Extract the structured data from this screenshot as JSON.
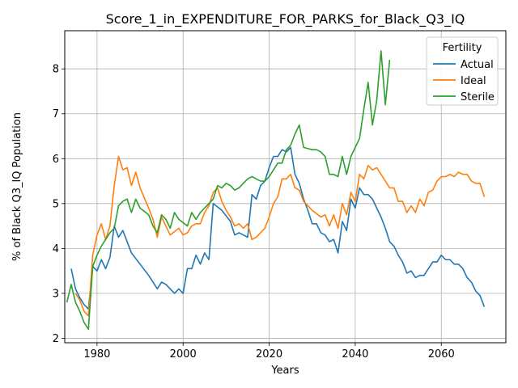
{
  "chart_data": {
    "type": "line",
    "title": "Score_1_in_EXPENDITURE_FOR_PARKS_for_Black_Q3_IQ",
    "xlabel": "Years",
    "ylabel": "% of Black Q3_IQ Population",
    "xlim": [
      1972.5,
      2075
    ],
    "ylim": [
      1.9,
      8.85
    ],
    "xticks": [
      1980,
      2000,
      2020,
      2040,
      2060
    ],
    "yticks": [
      2,
      3,
      4,
      5,
      6,
      7,
      8
    ],
    "grid": true,
    "legend": {
      "title": "Fertility",
      "placement": "top-right"
    },
    "series": [
      {
        "name": "Actual",
        "color": "#1f77b4",
        "points": [
          [
            1974,
            3.55
          ],
          [
            1975,
            3.1
          ],
          [
            1976,
            2.9
          ],
          [
            1977,
            2.75
          ],
          [
            1978,
            2.65
          ],
          [
            1979,
            3.6
          ],
          [
            1980,
            3.5
          ],
          [
            1981,
            3.75
          ],
          [
            1982,
            3.55
          ],
          [
            1983,
            3.8
          ],
          [
            1984,
            4.5
          ],
          [
            1985,
            4.25
          ],
          [
            1986,
            4.4
          ],
          [
            1987,
            4.15
          ],
          [
            1988,
            3.9
          ],
          [
            1990,
            3.65
          ],
          [
            1992,
            3.4
          ],
          [
            1994,
            3.1
          ],
          [
            1995,
            3.25
          ],
          [
            1996,
            3.2
          ],
          [
            1998,
            3.0
          ],
          [
            1999,
            3.1
          ],
          [
            2000,
            3.0
          ],
          [
            2001,
            3.55
          ],
          [
            2002,
            3.55
          ],
          [
            2003,
            3.85
          ],
          [
            2004,
            3.65
          ],
          [
            2005,
            3.9
          ],
          [
            2006,
            3.75
          ],
          [
            2007,
            5.0
          ],
          [
            2009,
            4.85
          ],
          [
            2011,
            4.6
          ],
          [
            2012,
            4.3
          ],
          [
            2013,
            4.35
          ],
          [
            2014,
            4.3
          ],
          [
            2015,
            4.25
          ],
          [
            2016,
            5.2
          ],
          [
            2017,
            5.1
          ],
          [
            2018,
            5.4
          ],
          [
            2019,
            5.5
          ],
          [
            2020,
            5.8
          ],
          [
            2021,
            6.05
          ],
          [
            2022,
            6.05
          ],
          [
            2023,
            6.2
          ],
          [
            2024,
            6.15
          ],
          [
            2025,
            6.25
          ],
          [
            2026,
            5.65
          ],
          [
            2027,
            5.45
          ],
          [
            2028,
            5.1
          ],
          [
            2029,
            4.85
          ],
          [
            2030,
            4.55
          ],
          [
            2031,
            4.55
          ],
          [
            2032,
            4.35
          ],
          [
            2033,
            4.3
          ],
          [
            2034,
            4.15
          ],
          [
            2035,
            4.2
          ],
          [
            2036,
            3.9
          ],
          [
            2037,
            4.6
          ],
          [
            2038,
            4.4
          ],
          [
            2039,
            5.1
          ],
          [
            2040,
            4.9
          ],
          [
            2041,
            5.35
          ],
          [
            2042,
            5.2
          ],
          [
            2043,
            5.2
          ],
          [
            2044,
            5.1
          ],
          [
            2046,
            4.7
          ],
          [
            2047,
            4.45
          ],
          [
            2048,
            4.15
          ],
          [
            2049,
            4.05
          ],
          [
            2050,
            3.85
          ],
          [
            2051,
            3.7
          ],
          [
            2052,
            3.45
          ],
          [
            2053,
            3.5
          ],
          [
            2054,
            3.35
          ],
          [
            2055,
            3.4
          ],
          [
            2056,
            3.4
          ],
          [
            2057,
            3.55
          ],
          [
            2058,
            3.7
          ],
          [
            2059,
            3.7
          ],
          [
            2060,
            3.85
          ],
          [
            2061,
            3.75
          ],
          [
            2062,
            3.75
          ],
          [
            2063,
            3.65
          ],
          [
            2064,
            3.65
          ],
          [
            2065,
            3.55
          ],
          [
            2066,
            3.35
          ],
          [
            2067,
            3.25
          ],
          [
            2068,
            3.05
          ],
          [
            2069,
            2.95
          ],
          [
            2070,
            2.7
          ]
        ]
      },
      {
        "name": "Ideal",
        "color": "#ff7f0e",
        "points": [
          [
            1975,
            3.0
          ],
          [
            1976,
            2.85
          ],
          [
            1977,
            2.6
          ],
          [
            1978,
            2.5
          ],
          [
            1979,
            3.85
          ],
          [
            1980,
            4.3
          ],
          [
            1981,
            4.55
          ],
          [
            1982,
            4.2
          ],
          [
            1983,
            4.5
          ],
          [
            1984,
            5.4
          ],
          [
            1985,
            6.05
          ],
          [
            1986,
            5.75
          ],
          [
            1987,
            5.8
          ],
          [
            1988,
            5.4
          ],
          [
            1989,
            5.7
          ],
          [
            1990,
            5.35
          ],
          [
            1992,
            4.9
          ],
          [
            1993,
            4.65
          ],
          [
            1994,
            4.25
          ],
          [
            1995,
            4.7
          ],
          [
            1997,
            4.3
          ],
          [
            1999,
            4.45
          ],
          [
            2000,
            4.3
          ],
          [
            2001,
            4.35
          ],
          [
            2002,
            4.5
          ],
          [
            2003,
            4.55
          ],
          [
            2004,
            4.55
          ],
          [
            2005,
            4.8
          ],
          [
            2006,
            4.95
          ],
          [
            2007,
            5.25
          ],
          [
            2008,
            5.35
          ],
          [
            2009,
            5.05
          ],
          [
            2010,
            4.85
          ],
          [
            2011,
            4.7
          ],
          [
            2012,
            4.5
          ],
          [
            2013,
            4.55
          ],
          [
            2014,
            4.45
          ],
          [
            2015,
            4.55
          ],
          [
            2016,
            4.2
          ],
          [
            2017,
            4.25
          ],
          [
            2018,
            4.35
          ],
          [
            2019,
            4.45
          ],
          [
            2020,
            4.7
          ],
          [
            2021,
            5.0
          ],
          [
            2022,
            5.15
          ],
          [
            2023,
            5.55
          ],
          [
            2024,
            5.55
          ],
          [
            2025,
            5.65
          ],
          [
            2026,
            5.35
          ],
          [
            2027,
            5.3
          ],
          [
            2028,
            5.05
          ],
          [
            2029,
            4.95
          ],
          [
            2030,
            4.85
          ],
          [
            2032,
            4.7
          ],
          [
            2033,
            4.75
          ],
          [
            2034,
            4.5
          ],
          [
            2035,
            4.75
          ],
          [
            2036,
            4.45
          ],
          [
            2037,
            5.0
          ],
          [
            2038,
            4.75
          ],
          [
            2039,
            5.25
          ],
          [
            2040,
            5.05
          ],
          [
            2041,
            5.65
          ],
          [
            2042,
            5.55
          ],
          [
            2043,
            5.85
          ],
          [
            2044,
            5.75
          ],
          [
            2045,
            5.8
          ],
          [
            2046,
            5.65
          ],
          [
            2047,
            5.5
          ],
          [
            2048,
            5.35
          ],
          [
            2049,
            5.35
          ],
          [
            2050,
            5.05
          ],
          [
            2051,
            5.05
          ],
          [
            2052,
            4.8
          ],
          [
            2053,
            4.95
          ],
          [
            2054,
            4.8
          ],
          [
            2055,
            5.1
          ],
          [
            2056,
            4.95
          ],
          [
            2057,
            5.25
          ],
          [
            2058,
            5.3
          ],
          [
            2059,
            5.5
          ],
          [
            2060,
            5.6
          ],
          [
            2061,
            5.6
          ],
          [
            2062,
            5.65
          ],
          [
            2063,
            5.6
          ],
          [
            2064,
            5.7
          ],
          [
            2065,
            5.65
          ],
          [
            2066,
            5.65
          ],
          [
            2067,
            5.5
          ],
          [
            2068,
            5.45
          ],
          [
            2069,
            5.45
          ],
          [
            2070,
            5.15
          ]
        ]
      },
      {
        "name": "Sterile",
        "color": "#2ca02c",
        "points": [
          [
            1973,
            2.8
          ],
          [
            1974,
            3.2
          ],
          [
            1975,
            2.8
          ],
          [
            1976,
            2.6
          ],
          [
            1977,
            2.35
          ],
          [
            1978,
            2.2
          ],
          [
            1979,
            3.6
          ],
          [
            1980,
            3.85
          ],
          [
            1981,
            4.05
          ],
          [
            1982,
            4.2
          ],
          [
            1983,
            4.35
          ],
          [
            1984,
            4.45
          ],
          [
            1985,
            4.95
          ],
          [
            1986,
            5.05
          ],
          [
            1987,
            5.1
          ],
          [
            1988,
            4.8
          ],
          [
            1989,
            5.1
          ],
          [
            1990,
            4.9
          ],
          [
            1992,
            4.75
          ],
          [
            1993,
            4.5
          ],
          [
            1994,
            4.35
          ],
          [
            1995,
            4.75
          ],
          [
            1996,
            4.65
          ],
          [
            1997,
            4.45
          ],
          [
            1998,
            4.8
          ],
          [
            1999,
            4.65
          ],
          [
            2001,
            4.5
          ],
          [
            2002,
            4.8
          ],
          [
            2003,
            4.65
          ],
          [
            2004,
            4.8
          ],
          [
            2005,
            4.9
          ],
          [
            2006,
            5.0
          ],
          [
            2007,
            5.1
          ],
          [
            2008,
            5.4
          ],
          [
            2009,
            5.35
          ],
          [
            2010,
            5.45
          ],
          [
            2011,
            5.4
          ],
          [
            2012,
            5.3
          ],
          [
            2013,
            5.35
          ],
          [
            2014,
            5.45
          ],
          [
            2015,
            5.55
          ],
          [
            2016,
            5.6
          ],
          [
            2017,
            5.55
          ],
          [
            2018,
            5.5
          ],
          [
            2019,
            5.5
          ],
          [
            2020,
            5.6
          ],
          [
            2021,
            5.75
          ],
          [
            2022,
            5.9
          ],
          [
            2023,
            5.9
          ],
          [
            2024,
            6.2
          ],
          [
            2025,
            6.3
          ],
          [
            2026,
            6.55
          ],
          [
            2027,
            6.75
          ],
          [
            2028,
            6.25
          ],
          [
            2030,
            6.2
          ],
          [
            2031,
            6.2
          ],
          [
            2032,
            6.15
          ],
          [
            2033,
            6.05
          ],
          [
            2034,
            5.65
          ],
          [
            2035,
            5.65
          ],
          [
            2036,
            5.6
          ],
          [
            2037,
            6.05
          ],
          [
            2038,
            5.65
          ],
          [
            2039,
            6.05
          ],
          [
            2040,
            6.25
          ],
          [
            2041,
            6.45
          ],
          [
            2042,
            7.1
          ],
          [
            2043,
            7.7
          ],
          [
            2044,
            6.75
          ],
          [
            2045,
            7.3
          ],
          [
            2046,
            8.4
          ],
          [
            2047,
            7.2
          ],
          [
            2048,
            8.2
          ]
        ]
      }
    ]
  }
}
